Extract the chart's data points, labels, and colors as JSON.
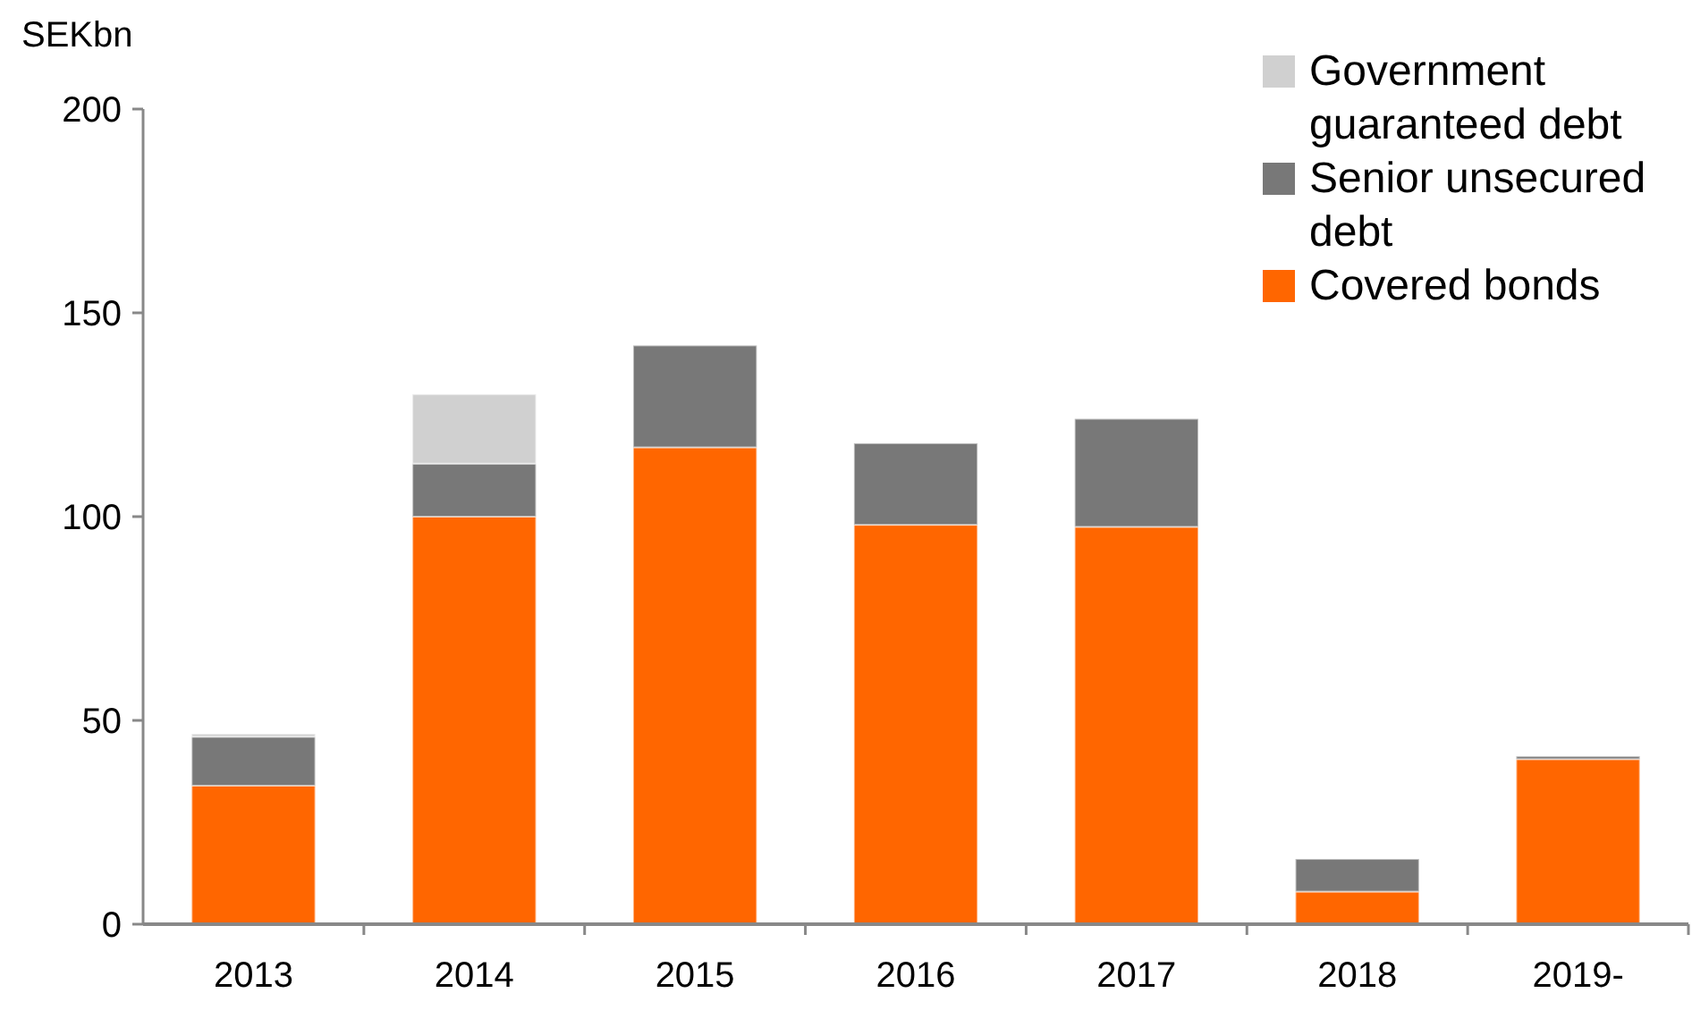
{
  "chart_data": {
    "type": "bar",
    "stacked": true,
    "ylabel": "SEKbn",
    "categories": [
      "2013",
      "2014",
      "2015",
      "2016",
      "2017",
      "2018",
      "2019-"
    ],
    "series": [
      {
        "name": "Covered bonds",
        "color": "#ff6600",
        "values": [
          34,
          100,
          117,
          98,
          97.5,
          8,
          40.5
        ]
      },
      {
        "name": "Senior unsecured debt",
        "color": "#787878",
        "values": [
          12,
          13,
          25,
          20,
          26.5,
          8,
          0.7
        ]
      },
      {
        "name": "Government guaranteed debt",
        "color": "#d0d0d0",
        "values": [
          0.7,
          17,
          0,
          0,
          0,
          0,
          0
        ]
      }
    ],
    "ylim": [
      0,
      200
    ],
    "yticks": [
      0,
      50,
      100,
      150,
      200
    ],
    "grid": false,
    "legend": "top right"
  }
}
